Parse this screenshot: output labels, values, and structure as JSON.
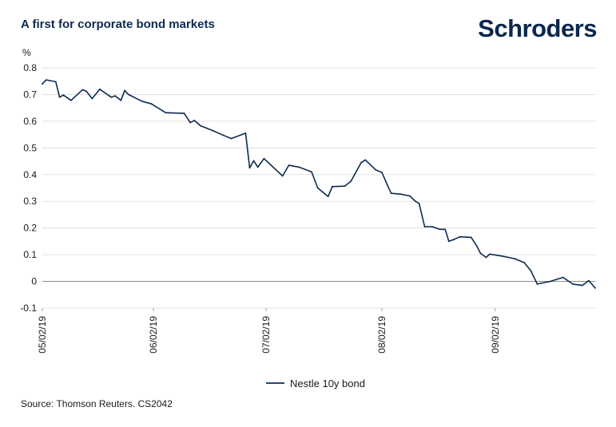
{
  "header": {
    "title": "A first for corporate bond markets",
    "logo_text": "Schroders"
  },
  "footer": {
    "source": "Source: Thomson Reuters. CS2042"
  },
  "colors": {
    "series": "#0d2a4f",
    "grid": "#d9d9d9",
    "zero_line": "#8c8c8c",
    "title": "#0d2a4f",
    "logo": "#0b2650"
  },
  "chart_data": {
    "type": "line",
    "ylabel": "%",
    "xlabel": "",
    "ylim": [
      -0.1,
      0.8
    ],
    "yticks": [
      0.8,
      0.7,
      0.6,
      0.5,
      0.4,
      0.3,
      0.2,
      0.1,
      0,
      -0.1
    ],
    "ytick_labels": [
      "0.8",
      "0.7",
      "0.6",
      "0.5",
      "0.4",
      "0.3",
      "0.2",
      "0.1",
      "0",
      "-0.1"
    ],
    "xlim": [
      "2019-02-05",
      "2019-10-24"
    ],
    "xticks": [
      "2019-02-05",
      "2019-04-04",
      "2019-05-29",
      "2019-07-24",
      "2019-09-23"
    ],
    "xtick_labels": [
      "05/02/19",
      "06/02/19",
      "07/02/19",
      "08/02/19",
      "09/02/19"
    ],
    "grid": true,
    "legend_position": "bottom-center",
    "series": [
      {
        "name": "Nestle 10y bond",
        "color": "#0d2a4f",
        "points": [
          [
            "2019-02-05",
            0.74
          ],
          [
            "2019-02-07",
            0.755
          ],
          [
            "2019-02-12",
            0.748
          ],
          [
            "2019-02-14",
            0.69
          ],
          [
            "2019-02-16",
            0.698
          ],
          [
            "2019-02-20",
            0.678
          ],
          [
            "2019-02-26",
            0.718
          ],
          [
            "2019-02-28",
            0.712
          ],
          [
            "2019-03-03",
            0.685
          ],
          [
            "2019-03-07",
            0.72
          ],
          [
            "2019-03-13",
            0.69
          ],
          [
            "2019-03-15",
            0.695
          ],
          [
            "2019-03-18",
            0.678
          ],
          [
            "2019-03-20",
            0.715
          ],
          [
            "2019-03-22",
            0.7
          ],
          [
            "2019-03-29",
            0.675
          ],
          [
            "2019-04-03",
            0.665
          ],
          [
            "2019-04-10",
            0.632
          ],
          [
            "2019-04-18",
            0.63
          ],
          [
            "2019-04-19",
            0.63
          ],
          [
            "2019-04-22",
            0.595
          ],
          [
            "2019-04-24",
            0.603
          ],
          [
            "2019-04-27",
            0.583
          ],
          [
            "2019-05-03",
            0.565
          ],
          [
            "2019-05-08",
            0.548
          ],
          [
            "2019-05-12",
            0.535
          ],
          [
            "2019-05-19",
            0.555
          ],
          [
            "2019-05-21",
            0.425
          ],
          [
            "2019-05-23",
            0.452
          ],
          [
            "2019-05-25",
            0.428
          ],
          [
            "2019-05-28",
            0.46
          ],
          [
            "2019-06-06",
            0.395
          ],
          [
            "2019-06-09",
            0.435
          ],
          [
            "2019-06-14",
            0.428
          ],
          [
            "2019-06-20",
            0.41
          ],
          [
            "2019-06-23",
            0.35
          ],
          [
            "2019-06-28",
            0.318
          ],
          [
            "2019-06-30",
            0.355
          ],
          [
            "2019-07-06",
            0.357
          ],
          [
            "2019-07-09",
            0.375
          ],
          [
            "2019-07-14",
            0.445
          ],
          [
            "2019-07-16",
            0.455
          ],
          [
            "2019-07-21",
            0.418
          ],
          [
            "2019-07-24",
            0.408
          ],
          [
            "2019-07-27",
            0.36
          ],
          [
            "2019-07-29",
            0.33
          ],
          [
            "2019-08-03",
            0.327
          ],
          [
            "2019-08-08",
            0.32
          ],
          [
            "2019-08-11",
            0.3
          ],
          [
            "2019-08-13",
            0.292
          ],
          [
            "2019-08-16",
            0.205
          ],
          [
            "2019-08-20",
            0.205
          ],
          [
            "2019-08-24",
            0.195
          ],
          [
            "2019-08-27",
            0.195
          ],
          [
            "2019-08-29",
            0.15
          ],
          [
            "2019-09-01",
            0.158
          ],
          [
            "2019-09-04",
            0.167
          ],
          [
            "2019-09-10",
            0.165
          ],
          [
            "2019-09-13",
            0.133
          ],
          [
            "2019-09-15",
            0.105
          ],
          [
            "2019-09-18",
            0.09
          ],
          [
            "2019-09-20",
            0.102
          ],
          [
            "2019-09-25",
            0.095
          ],
          [
            "2019-09-29",
            0.085
          ],
          [
            "2019-10-02",
            0.07
          ],
          [
            "2019-10-04",
            0.04
          ],
          [
            "2019-10-06",
            -0.01
          ],
          [
            "2019-10-10",
            0.0
          ],
          [
            "2019-10-14",
            0.015
          ],
          [
            "2019-10-17",
            -0.01
          ],
          [
            "2019-10-20",
            -0.015
          ],
          [
            "2019-10-22",
            0.003
          ],
          [
            "2019-10-24",
            -0.025
          ]
        ]
      }
    ]
  }
}
